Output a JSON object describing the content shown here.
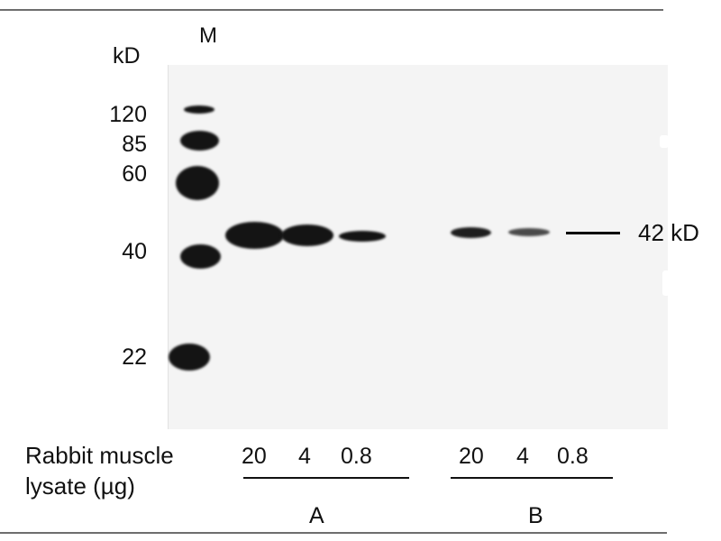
{
  "lane_marker_label": "M",
  "unit_label": "kD",
  "mw_markers": [
    "120",
    "85",
    "60",
    "40",
    "22"
  ],
  "target_band_label": "42 kD",
  "sample_label": [
    "Rabbit muscle",
    "lysate (µg)"
  ],
  "group_a": {
    "name": "A",
    "amounts": [
      "20",
      "4",
      "0.8"
    ]
  },
  "group_b": {
    "name": "B",
    "amounts": [
      "20",
      "4",
      "0.8"
    ]
  }
}
